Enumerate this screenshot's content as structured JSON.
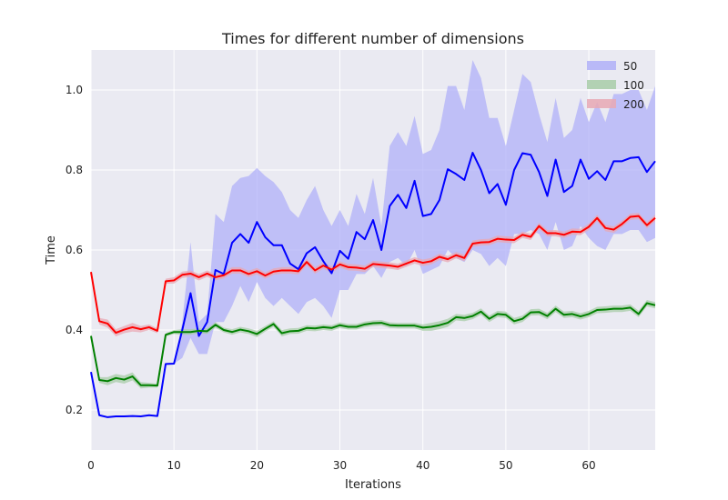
{
  "chart_data": {
    "type": "line",
    "title": "Times for different number of dimensions",
    "xlabel": "Iterations",
    "ylabel": "Time",
    "xlim": [
      0,
      68
    ],
    "ylim": [
      0.1,
      1.1
    ],
    "xticks": [
      0,
      10,
      20,
      30,
      40,
      50,
      60
    ],
    "yticks": [
      0.2,
      0.4,
      0.6,
      0.8,
      1.0
    ],
    "ytick_labels": [
      "0.2",
      "0.4",
      "0.6",
      "0.8",
      "1.0"
    ],
    "grid": true,
    "legend_position": "top-right",
    "x": [
      0,
      1,
      2,
      3,
      4,
      5,
      6,
      7,
      8,
      9,
      10,
      11,
      12,
      13,
      14,
      15,
      16,
      17,
      18,
      19,
      20,
      21,
      22,
      23,
      24,
      25,
      26,
      27,
      28,
      29,
      30,
      31,
      32,
      33,
      34,
      35,
      36,
      37,
      38,
      39,
      40,
      41,
      42,
      43,
      44,
      45,
      46,
      47,
      48,
      49,
      50,
      51,
      52,
      53,
      54,
      55,
      56,
      57,
      58,
      59,
      60,
      61,
      62,
      63,
      64,
      65,
      66,
      67,
      68
    ],
    "series": [
      {
        "name": "50",
        "color": "#0000ff",
        "fill": "#b0b0f8",
        "values": [
          0.295,
          0.187,
          0.182,
          0.184,
          0.184,
          0.185,
          0.184,
          0.187,
          0.185,
          0.315,
          0.316,
          0.4,
          0.492,
          0.385,
          0.42,
          0.55,
          0.54,
          0.618,
          0.64,
          0.618,
          0.67,
          0.632,
          0.612,
          0.612,
          0.566,
          0.552,
          0.592,
          0.607,
          0.572,
          0.542,
          0.598,
          0.578,
          0.645,
          0.627,
          0.675,
          0.6,
          0.71,
          0.738,
          0.705,
          0.773,
          0.685,
          0.69,
          0.725,
          0.802,
          0.79,
          0.775,
          0.843,
          0.8,
          0.742,
          0.765,
          0.713,
          0.8,
          0.842,
          0.838,
          0.795,
          0.735,
          0.826,
          0.745,
          0.76,
          0.826,
          0.778,
          0.797,
          0.775,
          0.822,
          0.822,
          0.83,
          0.832,
          0.795,
          0.822
        ],
        "upper": [
          0.295,
          0.187,
          0.182,
          0.184,
          0.184,
          0.185,
          0.184,
          0.187,
          0.185,
          0.315,
          0.316,
          0.42,
          0.62,
          0.42,
          0.44,
          0.69,
          0.67,
          0.76,
          0.78,
          0.785,
          0.805,
          0.785,
          0.77,
          0.745,
          0.7,
          0.68,
          0.725,
          0.76,
          0.7,
          0.66,
          0.7,
          0.66,
          0.74,
          0.69,
          0.78,
          0.66,
          0.86,
          0.895,
          0.86,
          0.935,
          0.84,
          0.85,
          0.9,
          1.01,
          1.01,
          0.95,
          1.075,
          1.03,
          0.93,
          0.93,
          0.86,
          0.95,
          1.04,
          1.02,
          0.94,
          0.87,
          0.98,
          0.88,
          0.9,
          0.98,
          0.92,
          0.97,
          0.92,
          0.99,
          0.99,
          1.0,
          1.0,
          0.95,
          1.01
        ],
        "lower": [
          0.295,
          0.187,
          0.182,
          0.184,
          0.184,
          0.185,
          0.184,
          0.187,
          0.185,
          0.315,
          0.316,
          0.33,
          0.38,
          0.34,
          0.34,
          0.42,
          0.42,
          0.46,
          0.51,
          0.47,
          0.52,
          0.48,
          0.46,
          0.48,
          0.46,
          0.44,
          0.47,
          0.48,
          0.46,
          0.43,
          0.5,
          0.5,
          0.54,
          0.54,
          0.56,
          0.53,
          0.57,
          0.58,
          0.56,
          0.6,
          0.54,
          0.55,
          0.56,
          0.6,
          0.58,
          0.57,
          0.6,
          0.59,
          0.56,
          0.58,
          0.56,
          0.64,
          0.64,
          0.65,
          0.64,
          0.6,
          0.67,
          0.6,
          0.61,
          0.66,
          0.63,
          0.61,
          0.6,
          0.64,
          0.64,
          0.65,
          0.65,
          0.62,
          0.63
        ]
      },
      {
        "name": "100",
        "color": "#008000",
        "fill": "#a8cca8",
        "values": [
          0.385,
          0.275,
          0.272,
          0.28,
          0.276,
          0.284,
          0.262,
          0.262,
          0.261,
          0.388,
          0.395,
          0.395,
          0.395,
          0.398,
          0.397,
          0.413,
          0.4,
          0.395,
          0.401,
          0.397,
          0.39,
          0.403,
          0.415,
          0.392,
          0.397,
          0.398,
          0.405,
          0.404,
          0.407,
          0.405,
          0.412,
          0.408,
          0.408,
          0.414,
          0.417,
          0.418,
          0.412,
          0.411,
          0.411,
          0.411,
          0.406,
          0.408,
          0.412,
          0.418,
          0.432,
          0.43,
          0.435,
          0.446,
          0.428,
          0.44,
          0.438,
          0.422,
          0.428,
          0.444,
          0.445,
          0.435,
          0.453,
          0.438,
          0.44,
          0.434,
          0.44,
          0.45,
          0.451,
          0.453,
          0.453,
          0.456,
          0.44,
          0.467,
          0.462
        ],
        "upper": [
          0.39,
          0.282,
          0.282,
          0.29,
          0.286,
          0.294,
          0.27,
          0.268,
          0.266,
          0.392,
          0.4,
          0.402,
          0.402,
          0.404,
          0.404,
          0.42,
          0.406,
          0.402,
          0.408,
          0.404,
          0.398,
          0.41,
          0.422,
          0.4,
          0.404,
          0.405,
          0.412,
          0.411,
          0.414,
          0.412,
          0.419,
          0.415,
          0.415,
          0.421,
          0.424,
          0.425,
          0.419,
          0.418,
          0.418,
          0.418,
          0.414,
          0.418,
          0.422,
          0.428,
          0.44,
          0.438,
          0.443,
          0.454,
          0.436,
          0.448,
          0.446,
          0.43,
          0.436,
          0.452,
          0.453,
          0.443,
          0.461,
          0.446,
          0.448,
          0.442,
          0.448,
          0.458,
          0.459,
          0.461,
          0.461,
          0.464,
          0.448,
          0.475,
          0.47
        ],
        "lower": [
          0.38,
          0.268,
          0.262,
          0.27,
          0.266,
          0.274,
          0.254,
          0.256,
          0.256,
          0.384,
          0.39,
          0.388,
          0.388,
          0.392,
          0.39,
          0.406,
          0.394,
          0.388,
          0.394,
          0.39,
          0.382,
          0.396,
          0.408,
          0.384,
          0.39,
          0.391,
          0.398,
          0.397,
          0.4,
          0.398,
          0.405,
          0.401,
          0.401,
          0.407,
          0.41,
          0.411,
          0.405,
          0.404,
          0.404,
          0.404,
          0.398,
          0.398,
          0.402,
          0.408,
          0.424,
          0.422,
          0.427,
          0.438,
          0.42,
          0.432,
          0.43,
          0.414,
          0.42,
          0.436,
          0.437,
          0.427,
          0.445,
          0.43,
          0.432,
          0.426,
          0.432,
          0.442,
          0.443,
          0.445,
          0.445,
          0.448,
          0.432,
          0.459,
          0.454
        ]
      },
      {
        "name": "200",
        "color": "#ff0000",
        "fill": "#e8a8b4",
        "values": [
          0.545,
          0.422,
          0.416,
          0.393,
          0.401,
          0.407,
          0.402,
          0.407,
          0.398,
          0.522,
          0.524,
          0.538,
          0.541,
          0.532,
          0.541,
          0.532,
          0.537,
          0.549,
          0.549,
          0.54,
          0.547,
          0.536,
          0.546,
          0.549,
          0.549,
          0.547,
          0.57,
          0.549,
          0.561,
          0.551,
          0.564,
          0.557,
          0.556,
          0.553,
          0.565,
          0.563,
          0.561,
          0.558,
          0.566,
          0.574,
          0.568,
          0.572,
          0.583,
          0.577,
          0.587,
          0.58,
          0.616,
          0.619,
          0.62,
          0.628,
          0.626,
          0.625,
          0.638,
          0.633,
          0.66,
          0.642,
          0.642,
          0.638,
          0.646,
          0.645,
          0.658,
          0.68,
          0.655,
          0.651,
          0.665,
          0.683,
          0.685,
          0.662,
          0.68
        ],
        "upper": [
          0.55,
          0.43,
          0.426,
          0.402,
          0.41,
          0.418,
          0.41,
          0.414,
          0.404,
          0.528,
          0.532,
          0.546,
          0.549,
          0.54,
          0.549,
          0.54,
          0.545,
          0.557,
          0.557,
          0.548,
          0.555,
          0.544,
          0.554,
          0.557,
          0.557,
          0.555,
          0.578,
          0.557,
          0.569,
          0.559,
          0.572,
          0.565,
          0.564,
          0.561,
          0.573,
          0.571,
          0.569,
          0.566,
          0.574,
          0.582,
          0.576,
          0.58,
          0.591,
          0.585,
          0.595,
          0.588,
          0.624,
          0.627,
          0.628,
          0.636,
          0.634,
          0.633,
          0.646,
          0.641,
          0.668,
          0.65,
          0.65,
          0.646,
          0.654,
          0.653,
          0.666,
          0.688,
          0.663,
          0.659,
          0.673,
          0.691,
          0.693,
          0.67,
          0.688
        ],
        "lower": [
          0.54,
          0.414,
          0.406,
          0.384,
          0.392,
          0.396,
          0.394,
          0.4,
          0.392,
          0.516,
          0.516,
          0.53,
          0.533,
          0.524,
          0.533,
          0.524,
          0.529,
          0.541,
          0.541,
          0.532,
          0.539,
          0.528,
          0.538,
          0.541,
          0.541,
          0.539,
          0.562,
          0.541,
          0.553,
          0.543,
          0.556,
          0.549,
          0.548,
          0.545,
          0.557,
          0.555,
          0.553,
          0.55,
          0.558,
          0.566,
          0.56,
          0.564,
          0.575,
          0.569,
          0.579,
          0.572,
          0.608,
          0.611,
          0.612,
          0.62,
          0.618,
          0.617,
          0.63,
          0.625,
          0.652,
          0.634,
          0.634,
          0.63,
          0.638,
          0.637,
          0.65,
          0.672,
          0.647,
          0.643,
          0.657,
          0.675,
          0.677,
          0.654,
          0.672
        ]
      }
    ]
  }
}
